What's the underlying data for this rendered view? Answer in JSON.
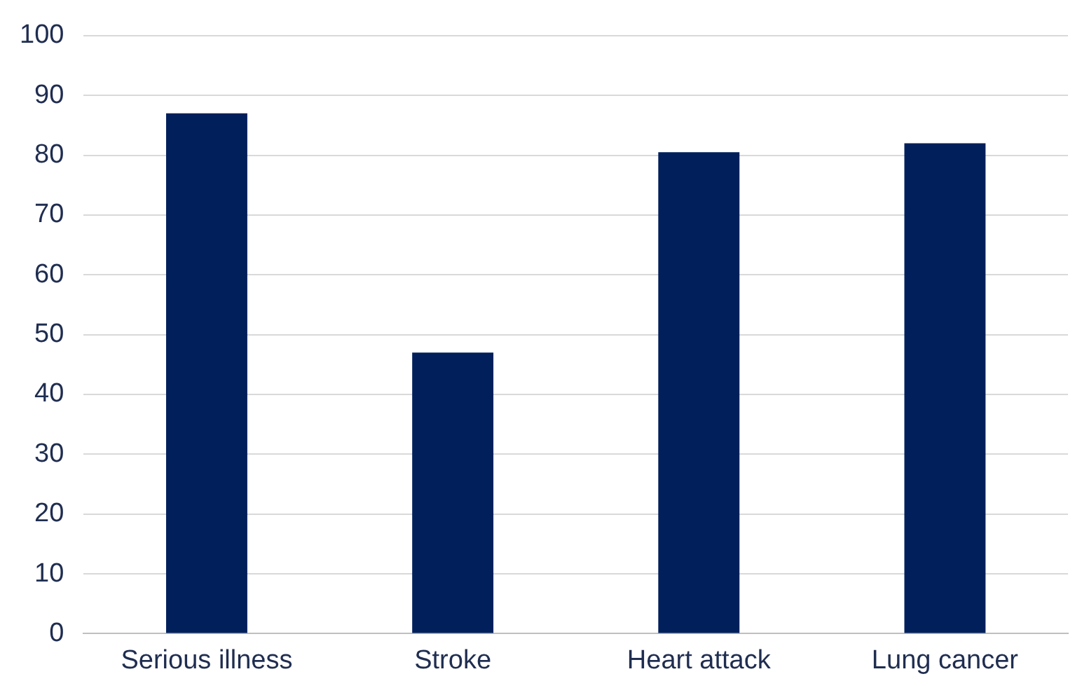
{
  "chart_data": {
    "type": "bar",
    "categories": [
      "Serious illness",
      "Stroke",
      "Heart attack",
      "Lung cancer"
    ],
    "values": [
      87,
      47,
      80.5,
      82
    ],
    "color": "#001f5b",
    "ylim": [
      0,
      100
    ],
    "yticks": [
      0,
      10,
      20,
      30,
      40,
      50,
      60,
      70,
      80,
      90,
      100
    ],
    "grid": "y"
  }
}
